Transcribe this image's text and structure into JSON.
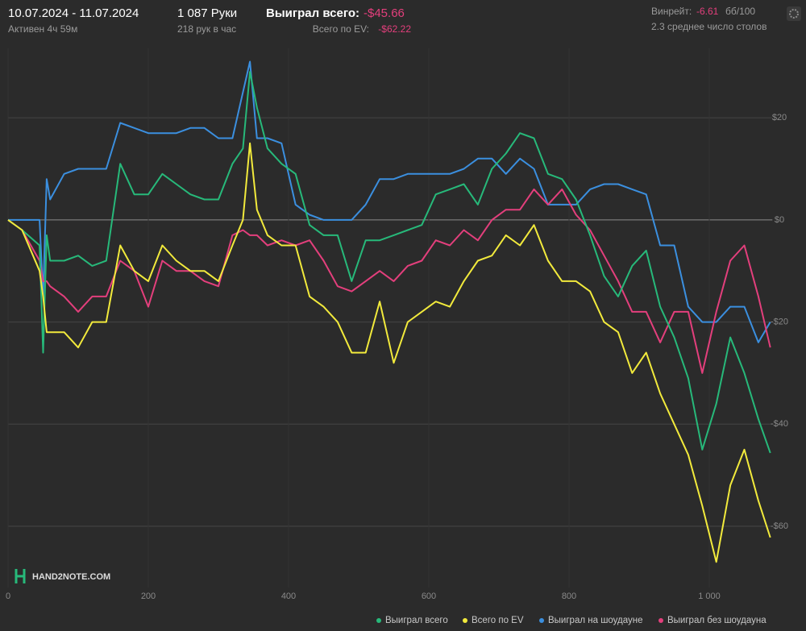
{
  "header": {
    "dates": "10.07.2024 - 11.07.2024",
    "active": "Активен 4ч 59м",
    "hands": "1 087 Руки",
    "hands_per_hour": "218 рук в час",
    "won_label": "Выиграл всего:",
    "won_value": "-$45.66",
    "ev_label": "Всего по EV:",
    "ev_value": "-$62.22",
    "winrate_label": "Винрейт:",
    "winrate_value": "-6.61",
    "winrate_unit": "бб/100",
    "tables": "2.3 среднее число столов",
    "logo": "HAND2NOTE.COM"
  },
  "chart_data": {
    "type": "line",
    "x": [
      0,
      20,
      45,
      50,
      55,
      60,
      80,
      100,
      120,
      140,
      160,
      180,
      200,
      220,
      240,
      260,
      280,
      300,
      320,
      335,
      345,
      355,
      370,
      390,
      410,
      430,
      450,
      470,
      490,
      510,
      530,
      550,
      570,
      590,
      610,
      630,
      650,
      670,
      690,
      710,
      730,
      750,
      770,
      790,
      810,
      830,
      850,
      870,
      890,
      910,
      930,
      950,
      970,
      990,
      1010,
      1030,
      1050,
      1070,
      1087
    ],
    "series": [
      {
        "name": "Выиграл всего",
        "color": "#27b97a",
        "values": [
          0,
          -2,
          -5,
          -26,
          -3,
          -8,
          -8,
          -7,
          -9,
          -8,
          11,
          5,
          5,
          9,
          7,
          5,
          4,
          4,
          11,
          14,
          29,
          22,
          14,
          11,
          9,
          -1,
          -3,
          -3,
          -12,
          -4,
          -4,
          -3,
          -2,
          -1,
          5,
          6,
          7,
          3,
          10,
          13,
          17,
          16,
          9,
          8,
          4,
          -3,
          -11,
          -15,
          -9,
          -6,
          -17,
          -23,
          -31,
          -45,
          -36,
          -23,
          -30,
          -39,
          -45.66
        ]
      },
      {
        "name": "Всего по EV",
        "color": "#f2ea3c",
        "values": [
          0,
          -2,
          -10,
          -15,
          -22,
          -22,
          -22,
          -25,
          -20,
          -20,
          -5,
          -10,
          -12,
          -5,
          -8,
          -10,
          -10,
          -12,
          -5,
          0,
          15,
          2,
          -3,
          -5,
          -5,
          -15,
          -17,
          -20,
          -26,
          -26,
          -16,
          -28,
          -20,
          -18,
          -16,
          -17,
          -12,
          -8,
          -7,
          -3,
          -5,
          -1,
          -8,
          -12,
          -12,
          -14,
          -20,
          -22,
          -30,
          -26,
          -34,
          -40,
          -46,
          -56,
          -67,
          -52,
          -45,
          -55,
          -62.22
        ]
      },
      {
        "name": "Выиграл на шоудауне",
        "color": "#3b8fdf",
        "values": [
          0,
          0,
          0,
          -15,
          8,
          4,
          9,
          10,
          10,
          10,
          19,
          18,
          17,
          17,
          17,
          18,
          18,
          16,
          16,
          25,
          31,
          16,
          16,
          15,
          3,
          1,
          0,
          0,
          0,
          3,
          8,
          8,
          9,
          9,
          9,
          9,
          10,
          12,
          12,
          9,
          12,
          10,
          3,
          3,
          3,
          6,
          7,
          7,
          6,
          5,
          -5,
          -5,
          -17,
          -20,
          -20,
          -17,
          -17,
          -24,
          -20
        ]
      },
      {
        "name": "Выиграл без шоудауна",
        "color": "#e33f7c",
        "values": [
          0,
          -2,
          -8,
          -12,
          -12,
          -13,
          -15,
          -18,
          -15,
          -15,
          -8,
          -10,
          -17,
          -8,
          -10,
          -10,
          -12,
          -13,
          -3,
          -2,
          -3,
          -3,
          -5,
          -4,
          -5,
          -4,
          -8,
          -13,
          -14,
          -12,
          -10,
          -12,
          -9,
          -8,
          -4,
          -5,
          -2,
          -4,
          0,
          2,
          2,
          6,
          3,
          6,
          1,
          -2,
          -7,
          -12,
          -18,
          -18,
          -24,
          -18,
          -18,
          -30,
          -18,
          -8,
          -5,
          -15,
          -25
        ]
      }
    ],
    "xlim": [
      0,
      1090
    ],
    "ylim": [
      -72,
      33.6
    ],
    "xticks": [
      0,
      200,
      400,
      600,
      800,
      {
        "value": 1000,
        "label": "1 000"
      }
    ],
    "yticks": [
      {
        "value": 20,
        "label": "$20"
      },
      {
        "value": 0,
        "label": "$0"
      },
      {
        "value": -20,
        "label": "-$20"
      },
      {
        "value": -40,
        "label": "-$40"
      },
      {
        "value": -60,
        "label": "-$60"
      }
    ],
    "grid": true
  }
}
